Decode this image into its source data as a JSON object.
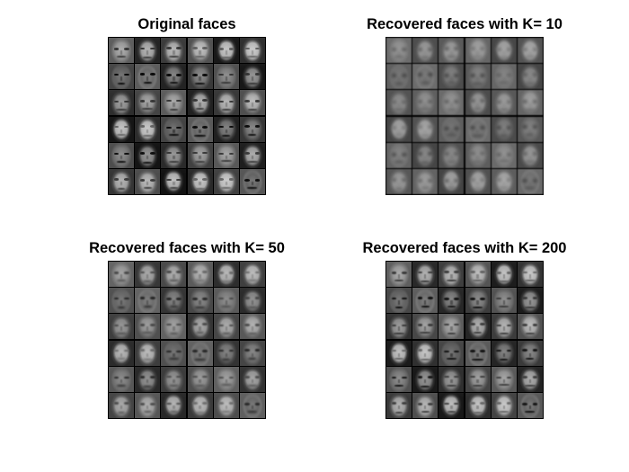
{
  "figure": {
    "background": "#ffffff",
    "panels": [
      {
        "id": "original",
        "title": "Original faces",
        "grid": {
          "rows": 6,
          "cols": 6,
          "tile_style": "sharp",
          "contrast": 1.0
        }
      },
      {
        "id": "k10",
        "title": "Recovered faces with K= 10",
        "grid": {
          "rows": 6,
          "cols": 6,
          "tile_style": "blurred",
          "contrast": 0.55
        }
      },
      {
        "id": "k50",
        "title": "Recovered faces with K= 50",
        "grid": {
          "rows": 6,
          "cols": 6,
          "tile_style": "moderate",
          "contrast": 0.8
        }
      },
      {
        "id": "k200",
        "title": "Recovered faces with K= 200",
        "grid": {
          "rows": 6,
          "cols": 6,
          "tile_style": "detailed",
          "contrast": 0.95
        }
      }
    ]
  },
  "colors": {
    "grid_line": "#000000",
    "title_text": "#000000"
  }
}
